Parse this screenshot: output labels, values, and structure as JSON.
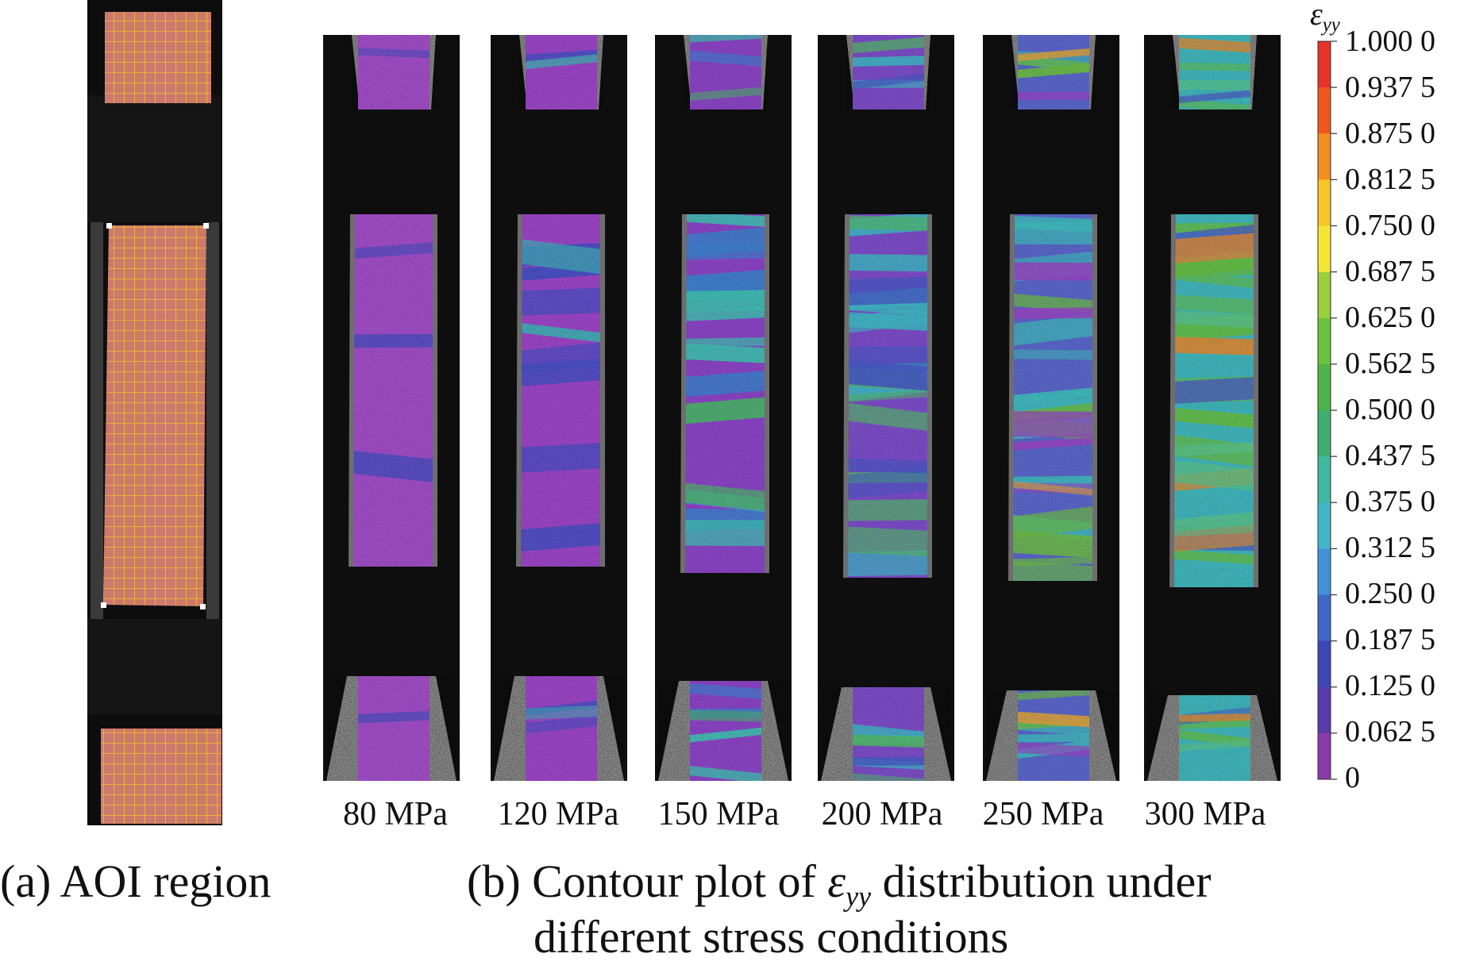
{
  "aoi_caption": "(a) AOI region",
  "contour_caption": {
    "prefix": "(b) Contour plot of",
    "symbol": "ε",
    "subscript": "yy",
    "suffix": "distribution under",
    "line2": "different stress conditions"
  },
  "colorbar": {
    "symbol": "ε",
    "subscript": "yy",
    "ticks": [
      "1.000 0",
      "0.937 5",
      "0.875 0",
      "0.812 5",
      "0.750 0",
      "0.687 5",
      "0.625 0",
      "0.562 5",
      "0.500 0",
      "0.437 5",
      "0.375 0",
      "0.312 5",
      "0.250 0",
      "0.187 5",
      "0.125 0",
      "0.062 5",
      "0"
    ],
    "colors": [
      "#e8322a",
      "#f2571f",
      "#f28e1e",
      "#f7c525",
      "#f5e633",
      "#9bd03a",
      "#6cc23d",
      "#4fb34a",
      "#3fae6e",
      "#3fb9a0",
      "#41b6c9",
      "#4291d8",
      "#3f67c8",
      "#3c46b4",
      "#5a3aa8",
      "#8a3aa8"
    ]
  },
  "stress_labels": [
    "80 MPa",
    "120 MPa",
    "150 MPa",
    "200 MPa",
    "250 MPa",
    "300 MPa"
  ],
  "specimens": [
    {
      "stress": "80 MPa",
      "base": "#a04dc6",
      "bands": [
        {
          "c": "#4b4dc0",
          "n": 3
        }
      ]
    },
    {
      "stress": "120 MPa",
      "base": "#9a45c4",
      "bands": [
        {
          "c": "#4650c4",
          "n": 7
        },
        {
          "c": "#3fb0b4",
          "n": 2
        }
      ]
    },
    {
      "stress": "150 MPa",
      "base": "#8a44c4",
      "bands": [
        {
          "c": "#3e7fcc",
          "n": 7
        },
        {
          "c": "#3fc0b0",
          "n": 7
        },
        {
          "c": "#4bb36a",
          "n": 2
        }
      ]
    },
    {
      "stress": "200 MPa",
      "base": "#7c4cc6",
      "bands": [
        {
          "c": "#3fb6c4",
          "n": 10
        },
        {
          "c": "#52b86a",
          "n": 7
        },
        {
          "c": "#4858c6",
          "n": 5
        }
      ]
    },
    {
      "stress": "250 MPa",
      "base": "#5a66c8",
      "bands": [
        {
          "c": "#3fbcbc",
          "n": 10
        },
        {
          "c": "#6cbc44",
          "n": 8
        },
        {
          "c": "#9a44c4",
          "n": 5
        },
        {
          "c": "#d8a040",
          "n": 1
        }
      ]
    },
    {
      "stress": "300 MPa",
      "base": "#3fb4ba",
      "bands": [
        {
          "c": "#66bc44",
          "n": 9
        },
        {
          "c": "#4d58c4",
          "n": 4
        },
        {
          "c": "#d88a38",
          "n": 4
        },
        {
          "c": "#5ac18a",
          "n": 5
        }
      ]
    }
  ]
}
